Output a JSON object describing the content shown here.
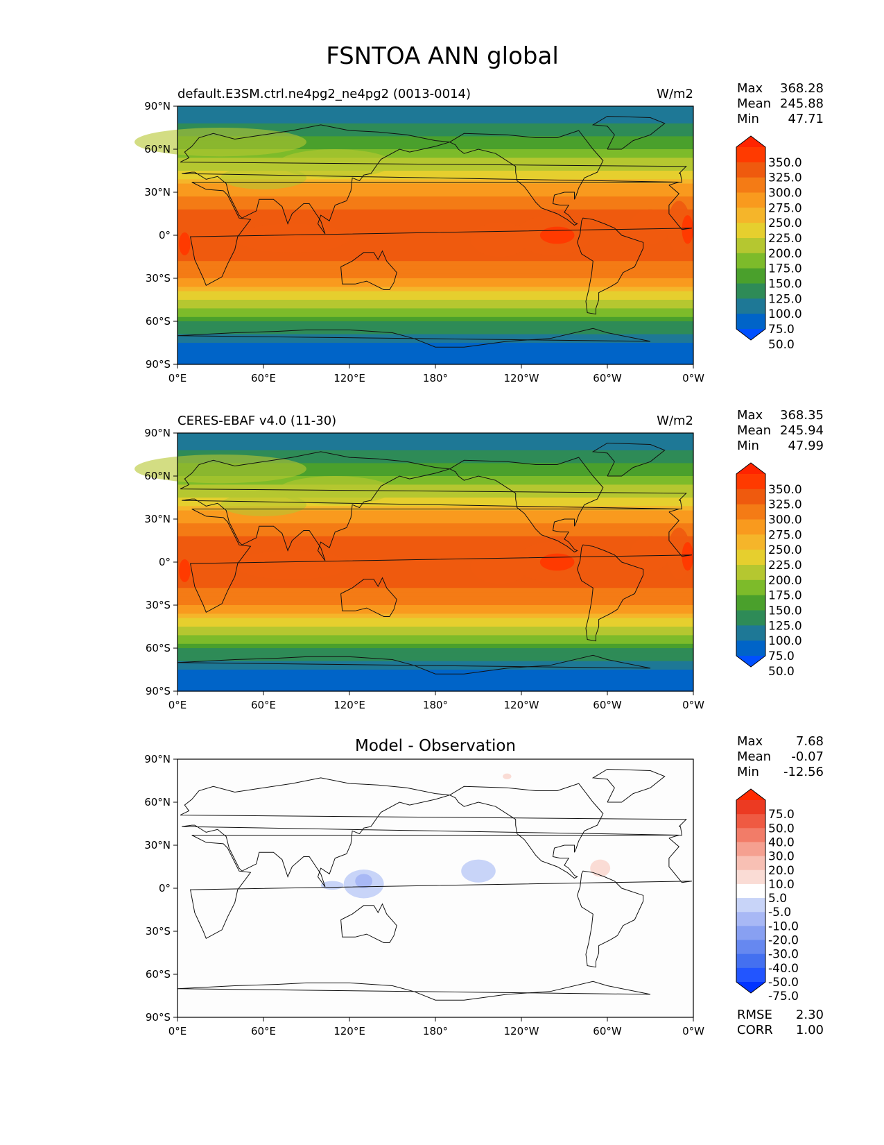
{
  "title": "FSNTOA ANN global",
  "x_ticks": [
    "0°E",
    "60°E",
    "120°E",
    "180°",
    "120°W",
    "60°W",
    "0°W"
  ],
  "y_ticks": [
    "90°N",
    "60°N",
    "30°N",
    "0°",
    "30°S",
    "60°S",
    "90°S"
  ],
  "stat_labels": {
    "max": "Max",
    "mean": "Mean",
    "min": "Min",
    "rmse": "RMSE",
    "corr": "CORR"
  },
  "panels": [
    {
      "left_title": "default.E3SM.ctrl.ne4pg2_ne4pg2 (0013-0014)",
      "center_title": "",
      "units": "W/m2",
      "stats": {
        "max": "368.28",
        "mean": "245.88",
        "min": "47.71"
      }
    },
    {
      "left_title": "CERES-EBAF v4.0 (11-30)",
      "center_title": "",
      "units": "W/m2",
      "stats": {
        "max": "368.35",
        "mean": "245.94",
        "min": "47.99"
      }
    },
    {
      "left_title": "",
      "center_title": "Model - Observation",
      "units": "",
      "stats": {
        "max": "7.68",
        "mean": "-0.07",
        "min": "-12.56"
      },
      "extra_stats": {
        "rmse": "2.30",
        "corr": "1.00"
      }
    }
  ],
  "colorbars": {
    "field": {
      "labels": [
        "350.0",
        "325.0",
        "300.0",
        "275.0",
        "250.0",
        "225.0",
        "200.0",
        "175.0",
        "150.0",
        "125.0",
        "100.0",
        "75.0",
        "50.0"
      ],
      "colors": [
        "#0050ff",
        "#0064c8",
        "#1e7896",
        "#2e8b57",
        "#4aa02c",
        "#7dbb2a",
        "#b5c730",
        "#e6cf2e",
        "#f5b52a",
        "#f99a1e",
        "#f47b15",
        "#ef5a0e",
        "#ff3a00",
        "#ff2400"
      ]
    },
    "diff": {
      "labels": [
        "75.0",
        "50.0",
        "40.0",
        "30.0",
        "20.0",
        "10.0",
        "5.0",
        "-5.0",
        "-10.0",
        "-20.0",
        "-30.0",
        "-40.0",
        "-50.0",
        "-75.0"
      ],
      "colors": [
        "#0033ff",
        "#2255ff",
        "#4470f0",
        "#6688f0",
        "#88a0f2",
        "#a8b8f5",
        "#c8d4f8",
        "#ffffff",
        "#fadcd5",
        "#f8c0b4",
        "#f5a090",
        "#f27c68",
        "#ef5a42",
        "#ec3a22",
        "#ff2a00"
      ]
    }
  },
  "chart_data": [
    {
      "type": "heatmap",
      "title": "default.E3SM.ctrl.ne4pg2_ne4pg2 (0013-0014)",
      "units": "W/m2",
      "xlim": [
        0,
        360
      ],
      "ylim": [
        -90,
        90
      ],
      "levels": [
        50,
        75,
        100,
        125,
        150,
        175,
        200,
        225,
        250,
        275,
        300,
        325,
        350
      ],
      "zonal_mean": {
        "lat": [
          90,
          75,
          60,
          45,
          30,
          15,
          0,
          -15,
          -30,
          -45,
          -60,
          -75,
          -90
        ],
        "value": [
          85,
          105,
          150,
          205,
          270,
          305,
          310,
          305,
          275,
          200,
          130,
          70,
          55
        ]
      },
      "max": 368.28,
      "mean": 245.88,
      "min": 47.71
    },
    {
      "type": "heatmap",
      "title": "CERES-EBAF v4.0 (11-30)",
      "units": "W/m2",
      "xlim": [
        0,
        360
      ],
      "ylim": [
        -90,
        90
      ],
      "levels": [
        50,
        75,
        100,
        125,
        150,
        175,
        200,
        225,
        250,
        275,
        300,
        325,
        350
      ],
      "zonal_mean": {
        "lat": [
          90,
          75,
          60,
          45,
          30,
          15,
          0,
          -15,
          -30,
          -45,
          -60,
          -75,
          -90
        ],
        "value": [
          85,
          105,
          150,
          205,
          270,
          305,
          310,
          305,
          275,
          200,
          130,
          70,
          55
        ]
      },
      "max": 368.35,
      "mean": 245.94,
      "min": 47.99
    },
    {
      "type": "heatmap",
      "title": "Model - Observation",
      "xlim": [
        0,
        360
      ],
      "ylim": [
        -90,
        90
      ],
      "levels": [
        -75,
        -50,
        -40,
        -30,
        -20,
        -10,
        -5,
        5,
        10,
        20,
        30,
        40,
        50,
        75
      ],
      "max": 7.68,
      "mean": -0.07,
      "min": -12.56,
      "rmse": 2.3,
      "corr": 1.0
    }
  ]
}
